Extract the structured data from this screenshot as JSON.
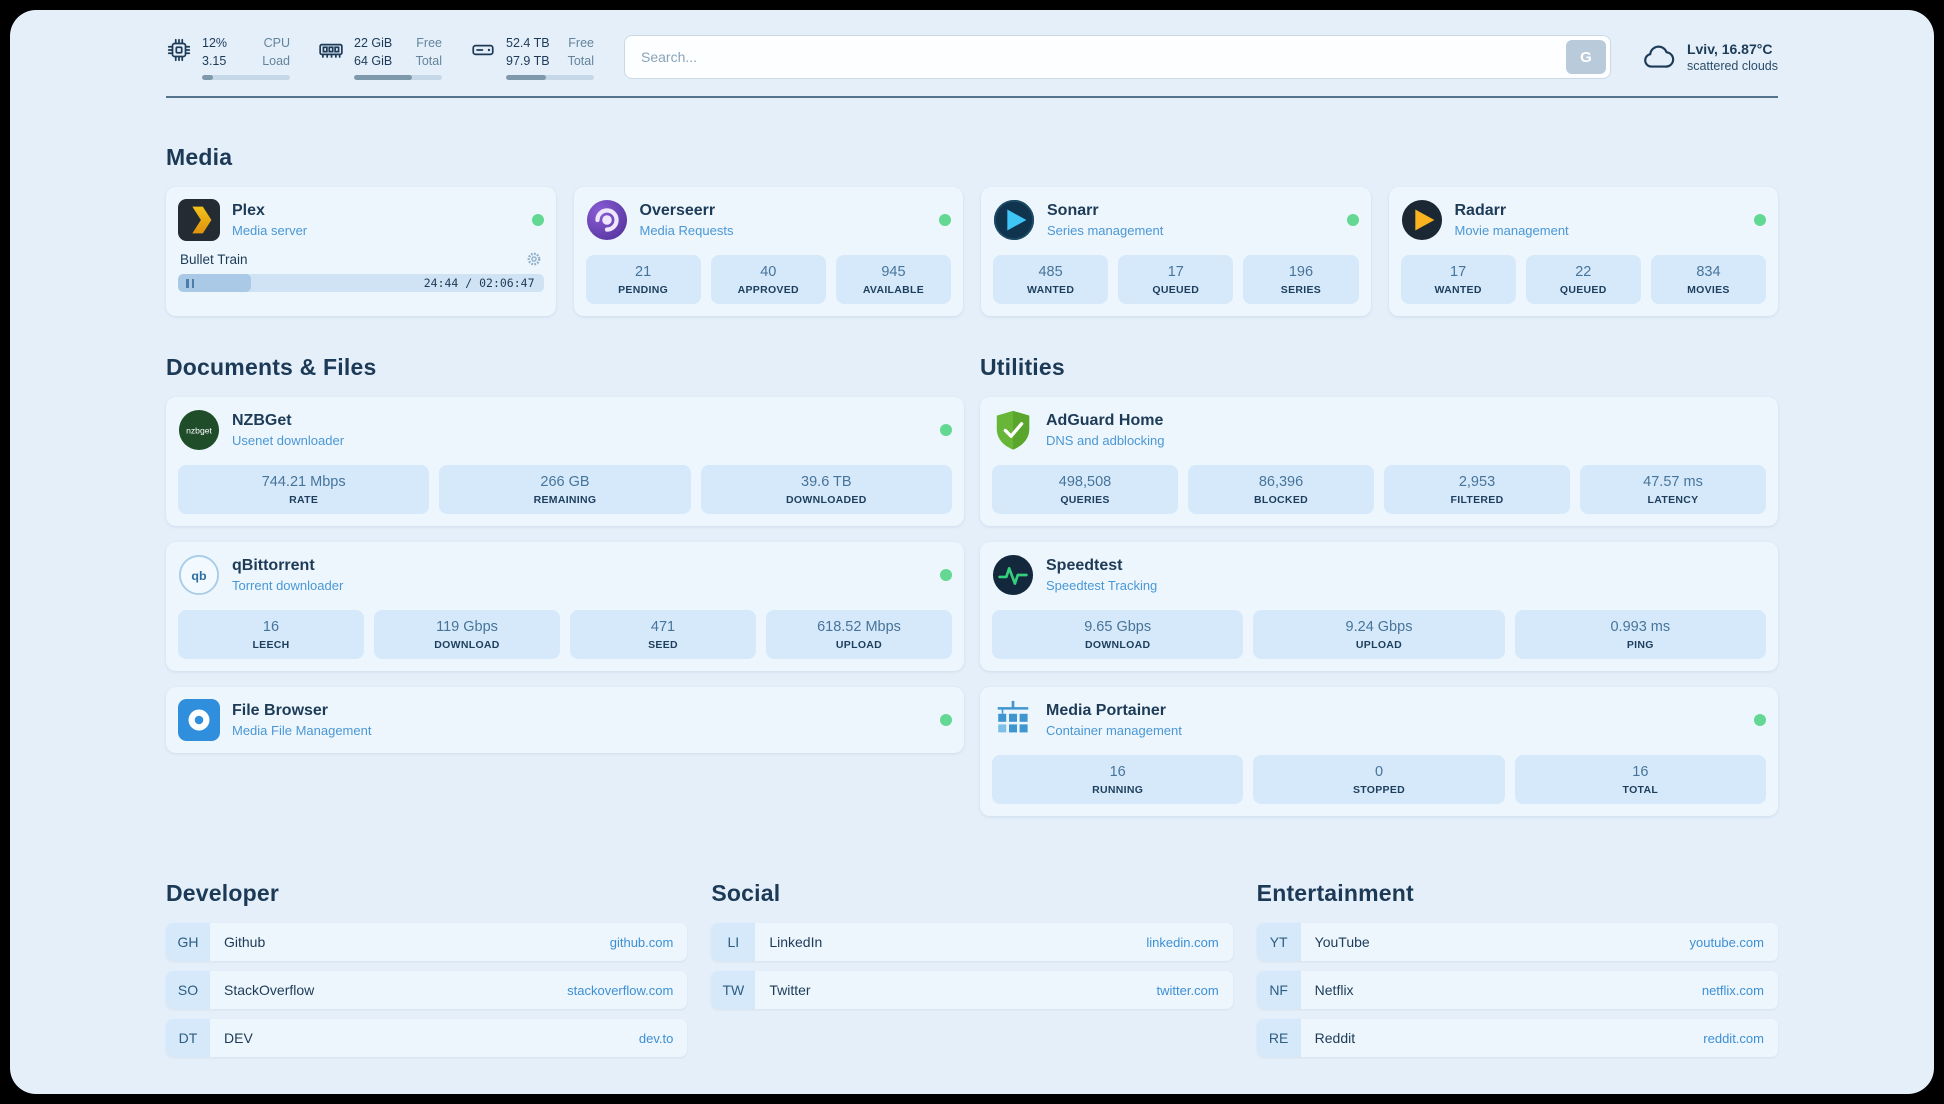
{
  "theme": {
    "background": "#e4effa",
    "card": "#edf6fd",
    "tile": "#d6e9fa",
    "accent_blue": "#3d8fd4",
    "status_green": "#63d892",
    "heading": "#1c3a56"
  },
  "topbar": {
    "resources": [
      {
        "id": "cpu",
        "value_top": "12%",
        "value_bottom": "3.15",
        "label_top": "CPU",
        "label_bottom": "Load",
        "progress_pct": 12
      },
      {
        "id": "memory",
        "value_top": "22 GiB",
        "value_bottom": "64 GiB",
        "label_top": "Free",
        "label_bottom": "Total",
        "progress_pct": 66
      },
      {
        "id": "disk",
        "value_top": "52.4 TB",
        "value_bottom": "97.9 TB",
        "label_top": "Free",
        "label_bottom": "Total",
        "progress_pct": 46
      }
    ],
    "search": {
      "placeholder": "Search...",
      "button_label": "G"
    },
    "weather": {
      "location": "Lviv, 16.87°C",
      "condition": "scattered clouds"
    }
  },
  "media": {
    "title": "Media",
    "plex": {
      "name": "Plex",
      "subtitle": "Media server",
      "now_playing": {
        "title": "Bullet Train",
        "time": "24:44 / 02:06:47",
        "progress_pct": 20
      }
    },
    "overseerr": {
      "name": "Overseerr",
      "subtitle": "Media Requests",
      "stats": [
        {
          "value": "21",
          "label": "PENDING"
        },
        {
          "value": "40",
          "label": "APPROVED"
        },
        {
          "value": "945",
          "label": "AVAILABLE"
        }
      ]
    },
    "sonarr": {
      "name": "Sonarr",
      "subtitle": "Series management",
      "stats": [
        {
          "value": "485",
          "label": "WANTED"
        },
        {
          "value": "17",
          "label": "QUEUED"
        },
        {
          "value": "196",
          "label": "SERIES"
        }
      ]
    },
    "radarr": {
      "name": "Radarr",
      "subtitle": "Movie management",
      "stats": [
        {
          "value": "17",
          "label": "WANTED"
        },
        {
          "value": "22",
          "label": "QUEUED"
        },
        {
          "value": "834",
          "label": "MOVIES"
        }
      ]
    }
  },
  "documents": {
    "title": "Documents & Files",
    "nzbget": {
      "name": "NZBGet",
      "subtitle": "Usenet downloader",
      "stats": [
        {
          "value": "744.21 Mbps",
          "label": "RATE"
        },
        {
          "value": "266 GB",
          "label": "REMAINING"
        },
        {
          "value": "39.6 TB",
          "label": "DOWNLOADED"
        }
      ]
    },
    "qbittorrent": {
      "name": "qBittorrent",
      "subtitle": "Torrent downloader",
      "stats": [
        {
          "value": "16",
          "label": "LEECH"
        },
        {
          "value": "119 Gbps",
          "label": "DOWNLOAD"
        },
        {
          "value": "471",
          "label": "SEED"
        },
        {
          "value": "618.52 Mbps",
          "label": "UPLOAD"
        }
      ]
    },
    "filebrowser": {
      "name": "File Browser",
      "subtitle": "Media File Management"
    }
  },
  "utilities": {
    "title": "Utilities",
    "adguard": {
      "name": "AdGuard Home",
      "subtitle": "DNS and adblocking",
      "stats": [
        {
          "value": "498,508",
          "label": "QUERIES"
        },
        {
          "value": "86,396",
          "label": "BLOCKED"
        },
        {
          "value": "2,953",
          "label": "FILTERED"
        },
        {
          "value": "47.57 ms",
          "label": "LATENCY"
        }
      ]
    },
    "speedtest": {
      "name": "Speedtest",
      "subtitle": "Speedtest Tracking",
      "stats": [
        {
          "value": "9.65 Gbps",
          "label": "DOWNLOAD"
        },
        {
          "value": "9.24 Gbps",
          "label": "UPLOAD"
        },
        {
          "value": "0.993 ms",
          "label": "PING"
        }
      ]
    },
    "portainer": {
      "name": "Media Portainer",
      "subtitle": "Container management",
      "stats": [
        {
          "value": "16",
          "label": "RUNNING"
        },
        {
          "value": "0",
          "label": "STOPPED"
        },
        {
          "value": "16",
          "label": "TOTAL"
        }
      ]
    }
  },
  "bookmarks": [
    {
      "title": "Developer",
      "items": [
        {
          "abbr": "GH",
          "name": "Github",
          "domain": "github.com"
        },
        {
          "abbr": "SO",
          "name": "StackOverflow",
          "domain": "stackoverflow.com"
        },
        {
          "abbr": "DT",
          "name": "DEV",
          "domain": "dev.to"
        }
      ]
    },
    {
      "title": "Social",
      "items": [
        {
          "abbr": "LI",
          "name": "LinkedIn",
          "domain": "linkedin.com"
        },
        {
          "abbr": "TW",
          "name": "Twitter",
          "domain": "twitter.com"
        }
      ]
    },
    {
      "title": "Entertainment",
      "items": [
        {
          "abbr": "YT",
          "name": "YouTube",
          "domain": "youtube.com"
        },
        {
          "abbr": "NF",
          "name": "Netflix",
          "domain": "netflix.com"
        },
        {
          "abbr": "RE",
          "name": "Reddit",
          "domain": "reddit.com"
        }
      ]
    }
  ]
}
